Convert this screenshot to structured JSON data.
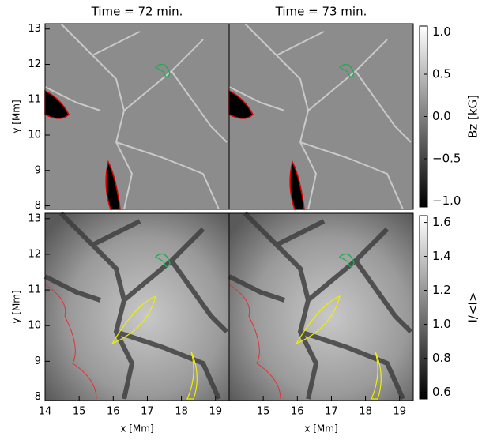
{
  "chart_data": [
    {
      "type": "image",
      "title": "Time = 72 min.",
      "ylabel": "y [Mm]",
      "xlim": [
        14,
        19.4
      ],
      "ylim": [
        7.9,
        13.15
      ],
      "yticks": [
        8,
        9,
        10,
        11,
        12,
        13
      ]
    },
    {
      "type": "image",
      "title": "Time = 73 min.",
      "xlim": [
        14,
        19.4
      ],
      "ylim": [
        7.9,
        13.15
      ]
    },
    {
      "type": "image",
      "xlabel": "x [Mm]",
      "ylabel": "y [Mm]",
      "xlim": [
        14,
        19.4
      ],
      "ylim": [
        7.9,
        13.15
      ],
      "xticks": [
        14,
        15,
        16,
        17,
        18,
        19
      ],
      "yticks": [
        8,
        9,
        10,
        11,
        12,
        13
      ]
    },
    {
      "type": "image",
      "xlabel": "x [Mm]",
      "xlim": [
        14,
        19.4
      ],
      "ylim": [
        7.9,
        13.15
      ],
      "xticks": [
        15,
        16,
        17,
        18,
        19
      ]
    },
    {
      "type": "colorbar",
      "label": "Bz [kG]",
      "ylim": [
        -1.07,
        1.07
      ],
      "yticks": [
        {
          "value": -1,
          "label": "−1.0"
        },
        {
          "value": -0.5,
          "label": "−0.5"
        },
        {
          "value": 0,
          "label": "0.0"
        },
        {
          "value": 0.5,
          "label": "0.5"
        },
        {
          "value": 1,
          "label": "1.0"
        }
      ]
    },
    {
      "type": "colorbar",
      "label": "I/<I>",
      "ylim": [
        0.56,
        1.64
      ],
      "yticks": [
        {
          "value": 0.6,
          "label": "0.6"
        },
        {
          "value": 0.8,
          "label": "0.8"
        },
        {
          "value": 1,
          "label": "1.0"
        },
        {
          "value": 1.2,
          "label": "1.2"
        },
        {
          "value": 1.4,
          "label": "1.4"
        },
        {
          "value": 1.6,
          "label": "1.6"
        }
      ]
    }
  ]
}
